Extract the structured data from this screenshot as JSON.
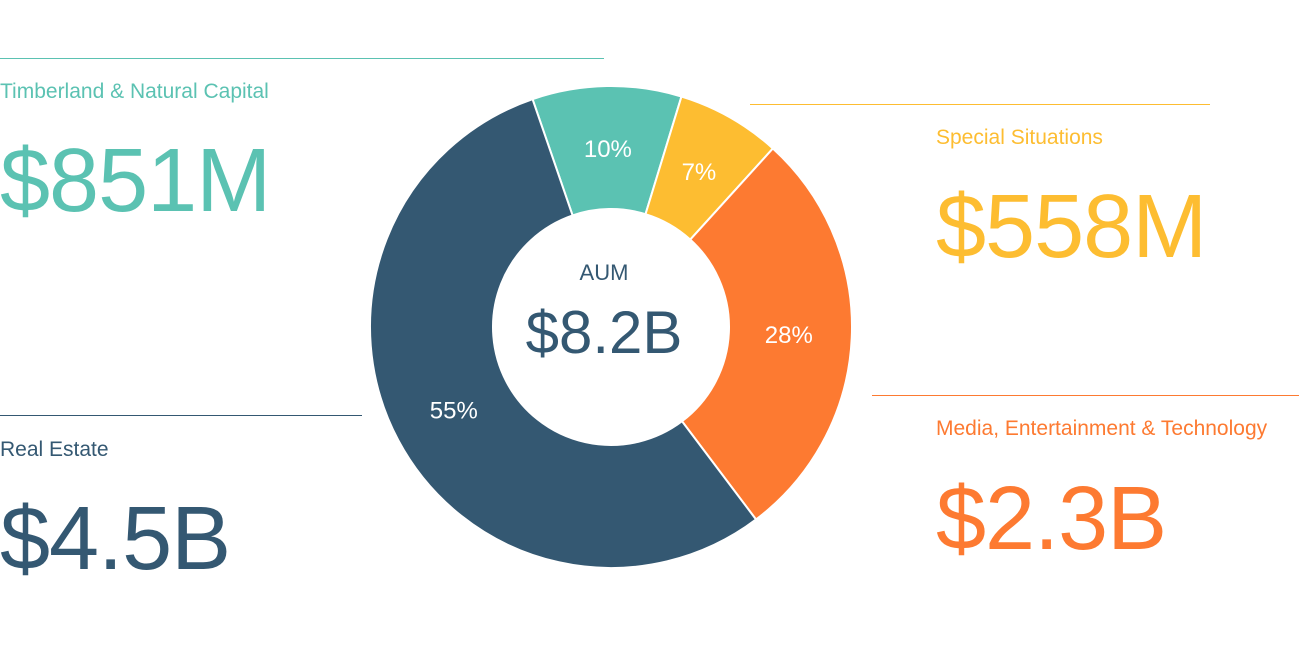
{
  "colors": {
    "real_estate": "#345872",
    "timberland": "#5bc2b2",
    "special": "#fdbd31",
    "media": "#fd7a31",
    "background": "#ffffff"
  },
  "segments": {
    "timberland": {
      "label": "Timberland & Natural Capital",
      "value": "$851M"
    },
    "special": {
      "label": "Special Situations",
      "value": "$558M"
    },
    "media": {
      "label": "Media, Entertainment & Technology",
      "value": "$2.3B"
    },
    "real_estate": {
      "label": "Real Estate",
      "value": "$4.5B"
    }
  },
  "center": {
    "label": "AUM",
    "value": "$8.2B"
  },
  "chart_data": {
    "type": "pie",
    "title": "",
    "center_label": "AUM",
    "center_value": "$8.2B",
    "categories": [
      "Timberland & Natural Capital",
      "Special Situations",
      "Media, Entertainment & Technology",
      "Real Estate"
    ],
    "values": [
      10,
      7,
      28,
      55
    ],
    "value_labels": [
      "10%",
      "7%",
      "28%",
      "55%"
    ],
    "amounts": [
      "$851M",
      "$558M",
      "$2.3B",
      "$4.5B"
    ],
    "colors": [
      "#5bc2b2",
      "#fdbd31",
      "#fd7a31",
      "#345872"
    ],
    "legend": "none"
  }
}
